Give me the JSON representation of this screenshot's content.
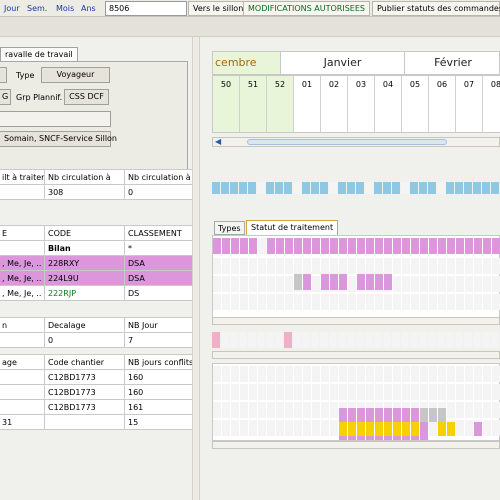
{
  "toolbar": {
    "period_links": [
      "Jour",
      "Sem.",
      "Mois",
      "Ans"
    ],
    "train_number": "8506",
    "vers_sillon": "Vers le sillon",
    "modifications": "MODIFICATIONS AUTORISEES",
    "publier": "Publier statuts des commandes"
  },
  "left": {
    "tab_label": "ravalle de travail",
    "type_label": "Type",
    "type_value": "Voyageur",
    "grp_label": "Grp Plannif.",
    "grp_value": "CSS DCF",
    "btn_g": "G",
    "owner": "Somain, SNCF-Service Sillon",
    "stats_headers": [
      "ilt à traiter",
      "Nb circulation à",
      "Nb circulation à"
    ],
    "stats_values": [
      "",
      "308",
      "0"
    ],
    "codes_headers": [
      "E",
      "CODE",
      "CLASSEMENT"
    ],
    "codes_rows": [
      {
        "days": "",
        "code": "Bilan",
        "class": "*",
        "style": "bilan"
      },
      {
        "days": ", Me, Je, ..",
        "code": "228RXY",
        "class": "DSA",
        "style": "pink"
      },
      {
        "days": ", Me, Je, ..",
        "code": "224L9U",
        "class": "DSA",
        "style": "pink"
      },
      {
        "days": ", Me, Je, ..",
        "code": "222RJP",
        "class": "DS",
        "style": "green"
      }
    ],
    "decal_headers": [
      "n",
      "Decalage",
      "NB Jour"
    ],
    "decal_values": [
      "",
      "0",
      "7"
    ],
    "chantier_headers": [
      "age",
      "Code chantier",
      "NB jours conflits"
    ],
    "chantier_rows": [
      [
        "",
        "C12BD1773",
        "160"
      ],
      [
        "",
        "C12BD1773",
        "160"
      ],
      [
        "",
        "C12BD1773",
        "161"
      ],
      [
        "31",
        "",
        "15"
      ]
    ]
  },
  "right": {
    "months": [
      "cembre",
      "Janvier",
      "Février"
    ],
    "weeks": [
      "50",
      "51",
      "52",
      "01",
      "02",
      "03",
      "04",
      "05",
      "06",
      "07",
      "08"
    ],
    "tabs": [
      "Types",
      "Statut de traitement"
    ],
    "colors": {
      "blue": "#8fc8e2",
      "pink": "#dc96dc",
      "yellow": "#f6d000",
      "light_pink": "#f0b0c8",
      "gray": "#c6c6c6",
      "december_bg": "#e9f5d8"
    }
  }
}
